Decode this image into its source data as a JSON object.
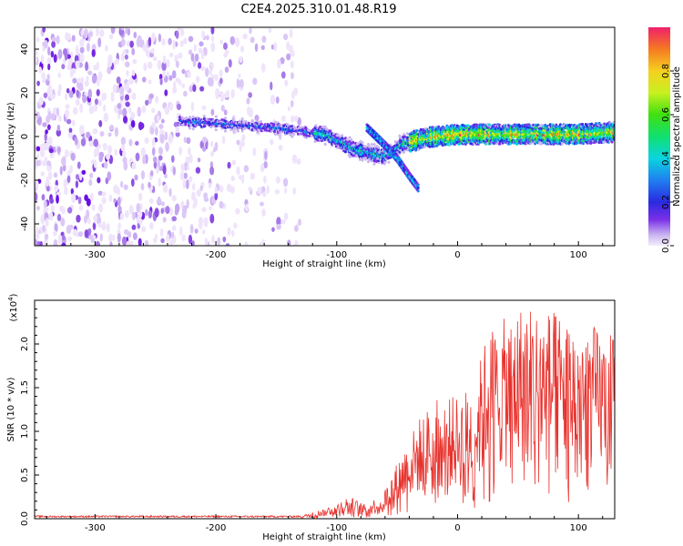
{
  "title": "C2E4.2025.310.01.48.R19",
  "chart_data": [
    {
      "type": "heatmap",
      "xlabel": "Height of straight line (km)",
      "ylabel": "Frequency (Hz)",
      "xlim": [
        -350,
        130
      ],
      "ylim": [
        -50,
        50
      ],
      "xticks": [
        -300,
        -200,
        -100,
        0,
        100
      ],
      "yticks": [
        -40,
        -20,
        0,
        20,
        40
      ],
      "colorbar": {
        "label": "Normalized spectral amplitude",
        "ticks": [
          "0.0",
          "0.2",
          "0.4",
          "0.6",
          "0.8"
        ],
        "range": [
          0,
          1
        ]
      },
      "ridge": {
        "description_points_km_hz": [
          [
            -230,
            7
          ],
          [
            -200,
            6
          ],
          [
            -150,
            4
          ],
          [
            -110,
            1
          ],
          [
            -85,
            -6
          ],
          [
            -70,
            -8
          ],
          [
            -60,
            -9
          ],
          [
            -45,
            -3
          ],
          [
            -20,
            0
          ],
          [
            0,
            1
          ],
          [
            50,
            1
          ],
          [
            100,
            1
          ],
          [
            130,
            2
          ]
        ],
        "branch_km_hz": [
          [
            -75,
            4
          ],
          [
            -60,
            -4
          ],
          [
            -50,
            -10
          ],
          [
            -40,
            -18
          ],
          [
            -32,
            -24
          ]
        ]
      }
    },
    {
      "type": "line",
      "xlabel": "Height of straight line (km)",
      "ylabel": "SNR (10 * v/v)",
      "yunit_label": "(x10",
      "yunit_exp": "4",
      "xlim": [
        -350,
        130
      ],
      "ylim": [
        0,
        25000
      ],
      "xticks": [
        -300,
        -200,
        -100,
        0,
        100
      ],
      "yticks": [
        "0.0",
        "0.5",
        "1.0",
        "1.5",
        "2.0"
      ],
      "series_color": "#e8322d",
      "envelope_km_snr": [
        [
          -350,
          200
        ],
        [
          -130,
          300
        ],
        [
          -110,
          1200
        ],
        [
          -90,
          2600
        ],
        [
          -75,
          1500
        ],
        [
          -60,
          3500
        ],
        [
          -45,
          8000
        ],
        [
          -30,
          12000
        ],
        [
          -15,
          14000
        ],
        [
          0,
          14000
        ],
        [
          15,
          16000
        ],
        [
          25,
          22000
        ],
        [
          40,
          23000
        ],
        [
          55,
          25000
        ],
        [
          75,
          24000
        ],
        [
          100,
          23000
        ],
        [
          115,
          22000
        ],
        [
          130,
          21000
        ]
      ]
    }
  ]
}
